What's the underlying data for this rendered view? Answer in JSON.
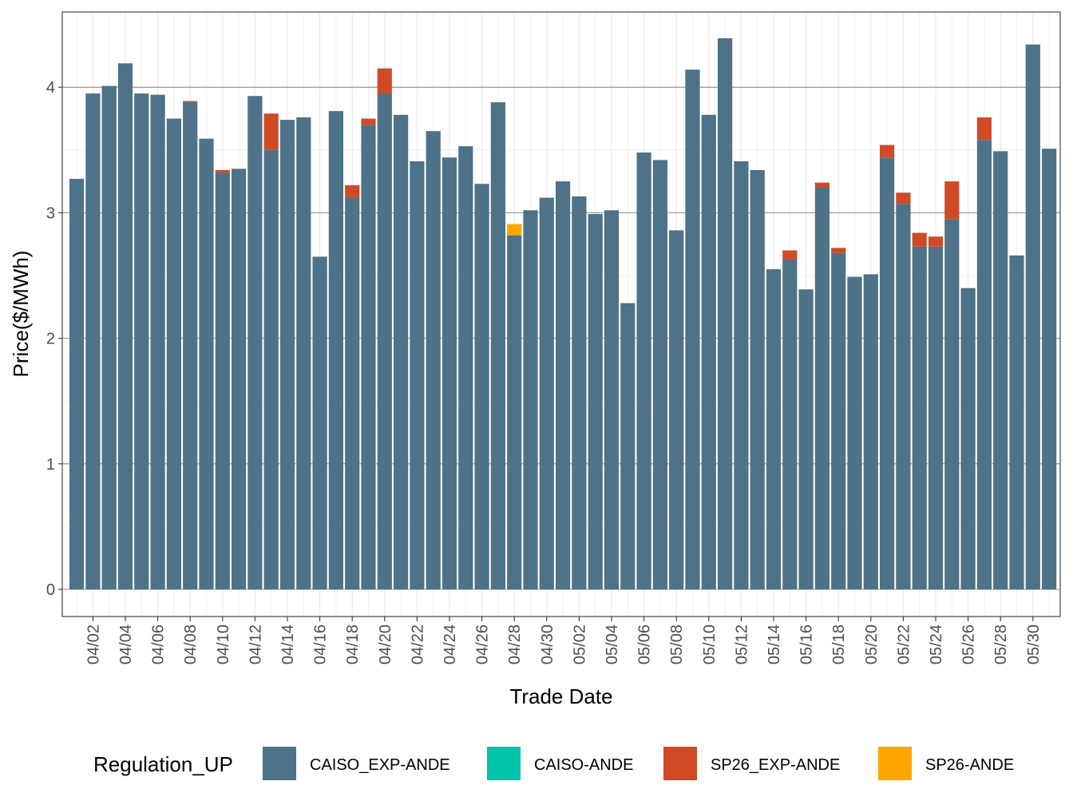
{
  "chart_data": {
    "type": "bar",
    "xlabel": "Trade Date",
    "ylabel": "Price($/MWh)",
    "ylim": [
      -0.2,
      4.55
    ],
    "yticks": [
      0,
      1,
      2,
      3,
      4
    ],
    "grid": true,
    "legend_position": "bottom",
    "legend_title": "Regulation_UP",
    "dates": [
      "04/01",
      "04/02",
      "04/03",
      "04/04",
      "04/05",
      "04/06",
      "04/07",
      "04/08",
      "04/09",
      "04/10",
      "04/11",
      "04/12",
      "04/13",
      "04/14",
      "04/15",
      "04/16",
      "04/17",
      "04/18",
      "04/19",
      "04/20",
      "04/21",
      "04/22",
      "04/23",
      "04/24",
      "04/25",
      "04/26",
      "04/27",
      "04/28",
      "04/29",
      "04/30",
      "05/01",
      "05/02",
      "05/03",
      "05/04",
      "05/05",
      "05/06",
      "05/07",
      "05/08",
      "05/09",
      "05/10",
      "05/11",
      "05/12",
      "05/13",
      "05/14",
      "05/15",
      "05/16",
      "05/17",
      "05/18",
      "05/19",
      "05/20",
      "05/21",
      "05/22",
      "05/23",
      "05/24",
      "05/25",
      "05/26",
      "05/27",
      "05/28",
      "05/29",
      "05/30",
      "05/31"
    ],
    "tick_labels": [
      "04/02",
      "04/04",
      "04/06",
      "04/08",
      "04/10",
      "04/12",
      "04/14",
      "04/16",
      "04/18",
      "04/20",
      "04/22",
      "04/24",
      "04/26",
      "04/28",
      "04/30",
      "05/02",
      "05/04",
      "05/06",
      "05/08",
      "05/10",
      "05/12",
      "05/14",
      "05/16",
      "05/18",
      "05/20",
      "05/22",
      "05/24",
      "05/26",
      "05/28",
      "05/30"
    ],
    "series": [
      {
        "name": "CAISO_EXP-ANDE",
        "color": "#4e7287",
        "values": [
          3.27,
          3.95,
          4.01,
          4.19,
          3.95,
          3.94,
          3.75,
          3.88,
          3.59,
          3.32,
          3.35,
          3.93,
          3.5,
          3.74,
          3.76,
          2.65,
          3.81,
          3.12,
          3.7,
          3.95,
          3.78,
          3.41,
          3.65,
          3.44,
          3.53,
          3.23,
          3.88,
          2.82,
          3.02,
          3.12,
          3.25,
          3.13,
          2.99,
          3.02,
          2.28,
          3.48,
          3.42,
          2.86,
          4.14,
          3.78,
          4.39,
          3.41,
          3.34,
          2.55,
          2.63,
          2.39,
          3.2,
          2.68,
          2.49,
          2.51,
          3.44,
          3.07,
          2.73,
          2.73,
          2.95,
          2.4,
          3.58,
          3.49,
          2.66,
          4.34,
          3.51
        ]
      },
      {
        "name": "CAISO-ANDE",
        "color": "#00c4aa",
        "values": [
          0,
          0,
          0,
          0,
          0,
          0,
          0,
          0,
          0,
          0,
          0,
          0,
          0,
          0,
          0,
          0,
          0,
          0,
          0,
          0,
          0,
          0,
          0,
          0,
          0,
          0,
          0,
          0,
          0,
          0,
          0,
          0,
          0,
          0,
          0,
          0,
          0,
          0,
          0,
          0,
          0,
          0,
          0,
          0,
          0,
          0,
          0,
          0,
          0,
          0,
          0,
          0,
          0,
          0,
          0,
          0,
          0,
          0,
          0,
          0,
          0
        ]
      },
      {
        "name": "SP26_EXP-ANDE",
        "color": "#d14a26",
        "values": [
          0,
          0,
          0,
          0,
          0,
          0,
          0,
          0.01,
          0,
          0.02,
          0,
          0,
          0.29,
          0,
          0,
          0,
          0,
          0.1,
          0.05,
          0.2,
          0,
          0,
          0,
          0,
          0,
          0,
          0,
          0,
          0,
          0,
          0,
          0,
          0,
          0,
          0,
          0,
          0,
          0,
          0,
          0,
          0,
          0,
          0,
          0,
          0.07,
          0,
          0.04,
          0.04,
          0,
          0,
          0.1,
          0.09,
          0.11,
          0.08,
          0.3,
          0,
          0.18,
          0,
          0,
          0,
          0
        ]
      },
      {
        "name": "SP26-ANDE",
        "color": "#ffa500",
        "values": [
          0,
          0,
          0,
          0,
          0,
          0,
          0,
          0,
          0,
          0,
          0,
          0,
          0,
          0,
          0,
          0,
          0,
          0,
          0,
          0,
          0,
          0,
          0,
          0,
          0,
          0,
          0,
          0.09,
          0,
          0,
          0,
          0,
          0,
          0,
          0,
          0,
          0,
          0,
          0,
          0,
          0,
          0,
          0,
          0,
          0,
          0,
          0,
          0,
          0,
          0,
          0,
          0,
          0,
          0,
          0,
          0,
          0,
          0,
          0,
          0,
          0
        ]
      }
    ]
  }
}
